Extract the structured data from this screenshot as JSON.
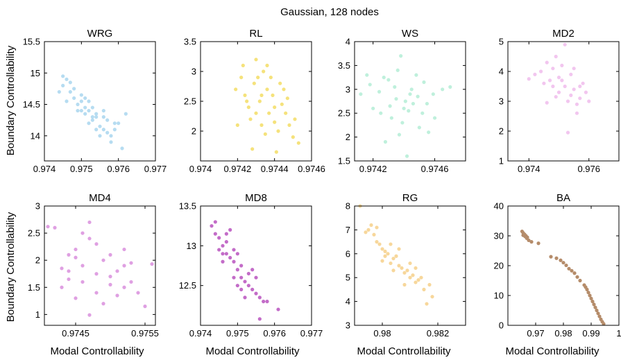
{
  "figure": {
    "title": "Gaussian, 128 nodes",
    "ylabel": "Boundary Controllability",
    "xlabel": "Modal Controllability"
  },
  "chart_data": [
    {
      "type": "scatter",
      "title": "WRG",
      "color": "#b6dcf1",
      "xlim": [
        0.974,
        0.977
      ],
      "ylim": [
        13.6,
        15.5
      ],
      "xticks": [
        "0.974",
        "0.975",
        "0.976",
        "0.977"
      ],
      "yticks": [
        "14",
        "14.5",
        "15",
        "15.5"
      ],
      "xtick_values": [
        0.974,
        0.975,
        0.976,
        0.977
      ],
      "ytick_values": [
        14,
        14.5,
        15,
        15.5
      ],
      "points": [
        [
          0.9746,
          14.9
        ],
        [
          0.9748,
          14.6
        ],
        [
          0.9749,
          14.5
        ],
        [
          0.9752,
          14.4
        ],
        [
          0.9754,
          14.3
        ],
        [
          0.9756,
          14.1
        ],
        [
          0.9758,
          14.0
        ],
        [
          0.976,
          14.2
        ],
        [
          0.9751,
          14.45
        ],
        [
          0.9753,
          14.25
        ],
        [
          0.9745,
          14.8
        ],
        [
          0.9747,
          14.7
        ],
        [
          0.975,
          14.55
        ],
        [
          0.9755,
          14.15
        ],
        [
          0.9757,
          14.05
        ],
        [
          0.9759,
          14.1
        ],
        [
          0.9761,
          13.8
        ],
        [
          0.9744,
          14.7
        ],
        [
          0.975,
          14.65
        ],
        [
          0.9752,
          14.2
        ],
        [
          0.9754,
          14.35
        ],
        [
          0.9756,
          14.3
        ],
        [
          0.9749,
          14.4
        ],
        [
          0.9751,
          14.6
        ],
        [
          0.9753,
          14.45
        ],
        [
          0.9748,
          14.75
        ],
        [
          0.9746,
          14.55
        ],
        [
          0.9755,
          14.0
        ],
        [
          0.9757,
          14.25
        ],
        [
          0.9762,
          14.35
        ],
        [
          0.9758,
          13.9
        ],
        [
          0.9752,
          14.55
        ],
        [
          0.9747,
          14.85
        ],
        [
          0.9745,
          14.95
        ],
        [
          0.975,
          14.4
        ],
        [
          0.9754,
          14.1
        ],
        [
          0.9756,
          14.4
        ],
        [
          0.9759,
          14.2
        ],
        [
          0.9753,
          14.3
        ],
        [
          0.9751,
          14.35
        ]
      ]
    },
    {
      "type": "scatter",
      "title": "RL",
      "color": "#f5e27c",
      "xlim": [
        0.974,
        0.9746
      ],
      "ylim": [
        1.5,
        3.5
      ],
      "xticks": [
        "0.974",
        "0.9742",
        "0.9744",
        "0.9746"
      ],
      "yticks": [
        "2",
        "2.5",
        "3",
        "3.5"
      ],
      "xtick_values": [
        0.974,
        0.9742,
        0.9744,
        0.9746
      ],
      "ytick_values": [
        2,
        2.5,
        3,
        3.5
      ],
      "points": [
        [
          0.97422,
          2.9
        ],
        [
          0.97425,
          2.5
        ],
        [
          0.9743,
          3.2
        ],
        [
          0.97433,
          2.1
        ],
        [
          0.97436,
          2.7
        ],
        [
          0.9744,
          2.4
        ],
        [
          0.97443,
          2.8
        ],
        [
          0.97446,
          2.3
        ],
        [
          0.9745,
          1.9
        ],
        [
          0.97428,
          1.7
        ],
        [
          0.97441,
          1.65
        ],
        [
          0.97424,
          2.6
        ],
        [
          0.97427,
          2.2
        ],
        [
          0.97431,
          2.9
        ],
        [
          0.97434,
          3.0
        ],
        [
          0.97437,
          2.3
        ],
        [
          0.97439,
          2.6
        ],
        [
          0.97442,
          2.0
        ],
        [
          0.97445,
          2.7
        ],
        [
          0.97448,
          2.1
        ],
        [
          0.97426,
          2.4
        ],
        [
          0.97429,
          2.8
        ],
        [
          0.97432,
          2.5
        ],
        [
          0.97435,
          1.95
        ],
        [
          0.97438,
          2.9
        ],
        [
          0.97444,
          2.45
        ],
        [
          0.97447,
          2.55
        ],
        [
          0.97451,
          2.2
        ],
        [
          0.97453,
          1.8
        ],
        [
          0.97419,
          2.7
        ],
        [
          0.9742,
          2.1
        ],
        [
          0.97423,
          3.1
        ],
        [
          0.97436,
          3.1
        ],
        [
          0.9744,
          2.15
        ],
        [
          0.97433,
          2.6
        ],
        [
          0.9743,
          2.3
        ]
      ]
    },
    {
      "type": "scatter",
      "title": "WS",
      "color": "#bff0dc",
      "xlim": [
        0.97408,
        0.9748
      ],
      "ylim": [
        1.5,
        4.0
      ],
      "xticks": [
        "0.9742",
        "0.9746"
      ],
      "yticks": [
        "1.5",
        "2",
        "2.5",
        "3",
        "3.5",
        "4"
      ],
      "xtick_values": [
        0.9742,
        0.9746
      ],
      "ytick_values": [
        1.5,
        2,
        2.5,
        3,
        3.5,
        4
      ],
      "points": [
        [
          0.97418,
          3.1
        ],
        [
          0.97425,
          2.5
        ],
        [
          0.9743,
          3.2
        ],
        [
          0.97435,
          2.8
        ],
        [
          0.9744,
          2.6
        ],
        [
          0.97445,
          3.0
        ],
        [
          0.9745,
          2.2
        ],
        [
          0.97455,
          2.7
        ],
        [
          0.9746,
          2.4
        ],
        [
          0.97465,
          3.0
        ],
        [
          0.97412,
          2.9
        ],
        [
          0.9747,
          3.05
        ],
        [
          0.97438,
          3.7
        ],
        [
          0.97442,
          1.6
        ],
        [
          0.97428,
          1.9
        ],
        [
          0.97432,
          2.4
        ],
        [
          0.97436,
          3.4
        ],
        [
          0.97444,
          2.9
        ],
        [
          0.97448,
          3.3
        ],
        [
          0.97452,
          2.5
        ],
        [
          0.97456,
          2.1
        ],
        [
          0.9742,
          2.6
        ],
        [
          0.97424,
          2.95
        ],
        [
          0.97446,
          2.7
        ],
        [
          0.97439,
          2.3
        ],
        [
          0.97434,
          3.05
        ],
        [
          0.97449,
          2.85
        ],
        [
          0.97443,
          2.55
        ],
        [
          0.97427,
          3.25
        ],
        [
          0.97453,
          3.15
        ],
        [
          0.97441,
          2.75
        ],
        [
          0.97437,
          2.05
        ],
        [
          0.97431,
          2.65
        ],
        [
          0.97459,
          2.9
        ],
        [
          0.97416,
          3.3
        ]
      ]
    },
    {
      "type": "scatter",
      "title": "MD2",
      "color": "#f2c6ef",
      "xlim": [
        0.9733,
        0.977
      ],
      "ylim": [
        1,
        5
      ],
      "xticks": [
        "0.974",
        "0.976"
      ],
      "yticks": [
        "1",
        "2",
        "3",
        "4",
        "5"
      ],
      "xtick_values": [
        0.974,
        0.976
      ],
      "ytick_values": [
        1,
        2,
        3,
        4,
        5
      ],
      "points": [
        [
          0.9748,
          4.1
        ],
        [
          0.975,
          3.8
        ],
        [
          0.9752,
          3.5
        ],
        [
          0.9754,
          3.2
        ],
        [
          0.9756,
          2.9
        ],
        [
          0.9746,
          4.3
        ],
        [
          0.9744,
          4.0
        ],
        [
          0.9758,
          3.6
        ],
        [
          0.976,
          3.0
        ],
        [
          0.9753,
          1.95
        ],
        [
          0.9749,
          4.5
        ],
        [
          0.9751,
          4.2
        ],
        [
          0.9755,
          3.4
        ],
        [
          0.9747,
          3.7
        ],
        [
          0.9742,
          3.9
        ],
        [
          0.9757,
          3.1
        ],
        [
          0.9752,
          4.9
        ],
        [
          0.975,
          3.3
        ],
        [
          0.9754,
          3.9
        ],
        [
          0.9748,
          3.5
        ],
        [
          0.9745,
          3.6
        ],
        [
          0.9756,
          2.6
        ],
        [
          0.9759,
          3.3
        ],
        [
          0.9753,
          3.0
        ],
        [
          0.9751,
          3.7
        ],
        [
          0.974,
          3.75
        ],
        [
          0.9755,
          4.1
        ],
        [
          0.9749,
          3.15
        ],
        [
          0.9757,
          3.5
        ],
        [
          0.9746,
          2.95
        ]
      ]
    },
    {
      "type": "scatter",
      "title": "MD4",
      "color": "#dfa0e2",
      "xlim": [
        0.97405,
        0.97565
      ],
      "ylim": [
        0.8,
        3.0
      ],
      "xticks": [
        "0.9745",
        "0.9755"
      ],
      "yticks": [
        "1",
        "1.5",
        "2",
        "2.5",
        "3"
      ],
      "xtick_values": [
        0.9745,
        0.9755
      ],
      "ytick_values": [
        1,
        1.5,
        2,
        2.5,
        3
      ],
      "points": [
        [
          0.9742,
          2.6
        ],
        [
          0.9744,
          2.1
        ],
        [
          0.9746,
          1.9
        ],
        [
          0.9748,
          2.3
        ],
        [
          0.975,
          1.7
        ],
        [
          0.9752,
          1.5
        ],
        [
          0.9754,
          1.4
        ],
        [
          0.9747,
          0.99
        ],
        [
          0.9743,
          1.5
        ],
        [
          0.9756,
          1.93
        ],
        [
          0.9745,
          2.2
        ],
        [
          0.9749,
          2.0
        ],
        [
          0.9751,
          1.8
        ],
        [
          0.9753,
          1.6
        ],
        [
          0.9744,
          1.8
        ],
        [
          0.9746,
          1.6
        ],
        [
          0.9748,
          1.4
        ],
        [
          0.975,
          2.1
        ],
        [
          0.9752,
          1.9
        ],
        [
          0.9747,
          2.4
        ],
        [
          0.9745,
          1.3
        ],
        [
          0.9749,
          1.2
        ],
        [
          0.9741,
          2.62
        ],
        [
          0.9755,
          1.15
        ],
        [
          0.9743,
          1.85
        ],
        [
          0.9746,
          2.5
        ],
        [
          0.9748,
          1.75
        ],
        [
          0.975,
          1.55
        ],
        [
          0.9752,
          2.2
        ],
        [
          0.9744,
          1.65
        ],
        [
          0.9747,
          2.7
        ],
        [
          0.9751,
          1.35
        ],
        [
          0.9753,
          1.95
        ],
        [
          0.9745,
          2.05
        ]
      ]
    },
    {
      "type": "scatter",
      "title": "MD8",
      "color": "#c36cc8",
      "xlim": [
        0.974,
        0.977
      ],
      "ylim": [
        12.0,
        13.5
      ],
      "xticks": [
        "0.974",
        "0.975",
        "0.976",
        "0.977"
      ],
      "yticks": [
        "12.5",
        "13",
        "13.5"
      ],
      "xtick_values": [
        0.974,
        0.975,
        0.976,
        0.977
      ],
      "ytick_values": [
        12.5,
        13,
        13.5
      ],
      "points": [
        [
          0.9745,
          13.1
        ],
        [
          0.9747,
          12.9
        ],
        [
          0.9749,
          12.8
        ],
        [
          0.9751,
          12.6
        ],
        [
          0.9753,
          12.5
        ],
        [
          0.9755,
          12.4
        ],
        [
          0.9743,
          13.25
        ],
        [
          0.9758,
          12.3
        ],
        [
          0.9761,
          12.2
        ],
        [
          0.9756,
          12.08
        ],
        [
          0.9746,
          13.0
        ],
        [
          0.9748,
          12.85
        ],
        [
          0.975,
          12.7
        ],
        [
          0.9752,
          12.55
        ],
        [
          0.9754,
          12.45
        ],
        [
          0.9744,
          13.15
        ],
        [
          0.9747,
          13.05
        ],
        [
          0.9749,
          12.95
        ],
        [
          0.9751,
          12.75
        ],
        [
          0.9753,
          12.65
        ],
        [
          0.9746,
          12.8
        ],
        [
          0.975,
          12.9
        ],
        [
          0.9752,
          12.35
        ],
        [
          0.9748,
          13.2
        ],
        [
          0.9745,
          12.95
        ],
        [
          0.9755,
          12.6
        ],
        [
          0.9757,
          12.3
        ],
        [
          0.9744,
          13.3
        ],
        [
          0.9749,
          12.6
        ],
        [
          0.9751,
          12.45
        ],
        [
          0.9754,
          12.7
        ],
        [
          0.9747,
          13.15
        ],
        [
          0.9756,
          12.35
        ],
        [
          0.9746,
          12.9
        ],
        [
          0.975,
          12.5
        ]
      ]
    },
    {
      "type": "scatter",
      "title": "RG",
      "color": "#f7d79b",
      "xlim": [
        0.979,
        0.983
      ],
      "ylim": [
        3,
        8
      ],
      "xticks": [
        "0.98",
        "0.982"
      ],
      "yticks": [
        "3",
        "4",
        "5",
        "6",
        "7",
        "8"
      ],
      "xtick_values": [
        0.98,
        0.982
      ],
      "ytick_values": [
        3,
        4,
        5,
        6,
        7,
        8
      ],
      "points": [
        [
          0.9792,
          8.0
        ],
        [
          0.9795,
          7.0
        ],
        [
          0.9798,
          6.5
        ],
        [
          0.98,
          6.2
        ],
        [
          0.9802,
          6.0
        ],
        [
          0.9804,
          5.8
        ],
        [
          0.9806,
          5.5
        ],
        [
          0.9808,
          5.2
        ],
        [
          0.981,
          5.0
        ],
        [
          0.9812,
          4.8
        ],
        [
          0.9815,
          4.5
        ],
        [
          0.9818,
          4.2
        ],
        [
          0.9816,
          3.9
        ],
        [
          0.9797,
          6.8
        ],
        [
          0.9799,
          6.4
        ],
        [
          0.9801,
          6.1
        ],
        [
          0.9803,
          5.6
        ],
        [
          0.9805,
          5.9
        ],
        [
          0.9807,
          5.4
        ],
        [
          0.9809,
          5.3
        ],
        [
          0.9811,
          5.1
        ],
        [
          0.9813,
          4.9
        ],
        [
          0.9796,
          7.2
        ],
        [
          0.9794,
          6.9
        ],
        [
          0.9814,
          5.0
        ],
        [
          0.9817,
          4.7
        ],
        [
          0.98,
          5.7
        ],
        [
          0.9806,
          6.2
        ],
        [
          0.981,
          5.6
        ],
        [
          0.9803,
          6.4
        ],
        [
          0.9808,
          4.7
        ],
        [
          0.9812,
          5.4
        ],
        [
          0.9804,
          5.3
        ],
        [
          0.9798,
          7.1
        ],
        [
          0.9801,
          5.9
        ]
      ]
    },
    {
      "type": "scatter",
      "title": "BA",
      "color": "#b58c6a",
      "xlim": [
        0.96,
        1.0
      ],
      "ylim": [
        0,
        40
      ],
      "xticks": [
        "0.97",
        "0.98",
        "0.99",
        "1"
      ],
      "yticks": [
        "0",
        "10",
        "20",
        "30",
        "40"
      ],
      "xtick_values": [
        0.97,
        0.98,
        0.99,
        1.0
      ],
      "ytick_values": [
        0,
        10,
        20,
        30,
        40
      ],
      "points": [
        [
          0.9651,
          31.5
        ],
        [
          0.9655,
          31.0
        ],
        [
          0.966,
          30.5
        ],
        [
          0.9665,
          30.0
        ],
        [
          0.967,
          29.5
        ],
        [
          0.9675,
          28.5
        ],
        [
          0.9685,
          28.0
        ],
        [
          0.971,
          27.5
        ],
        [
          0.9755,
          23.0
        ],
        [
          0.9775,
          22.5
        ],
        [
          0.98,
          21.0
        ],
        [
          0.982,
          19.0
        ],
        [
          0.984,
          17.5
        ],
        [
          0.986,
          15.0
        ],
        [
          0.9875,
          13.5
        ],
        [
          0.9885,
          12.0
        ],
        [
          0.9895,
          10.0
        ],
        [
          0.9905,
          8.0
        ],
        [
          0.9915,
          6.0
        ],
        [
          0.9925,
          4.0
        ],
        [
          0.9935,
          2.0
        ],
        [
          0.9945,
          0.5
        ],
        [
          0.9655,
          30.2
        ],
        [
          0.9662,
          29.8
        ],
        [
          0.9668,
          29.2
        ],
        [
          0.988,
          12.8
        ],
        [
          0.989,
          11.0
        ],
        [
          0.99,
          9.0
        ],
        [
          0.991,
          7.0
        ],
        [
          0.992,
          5.0
        ],
        [
          0.993,
          3.0
        ],
        [
          0.994,
          1.2
        ],
        [
          0.985,
          16.2
        ],
        [
          0.983,
          18.3
        ],
        [
          0.981,
          20.1
        ],
        [
          0.979,
          21.8
        ]
      ]
    }
  ]
}
